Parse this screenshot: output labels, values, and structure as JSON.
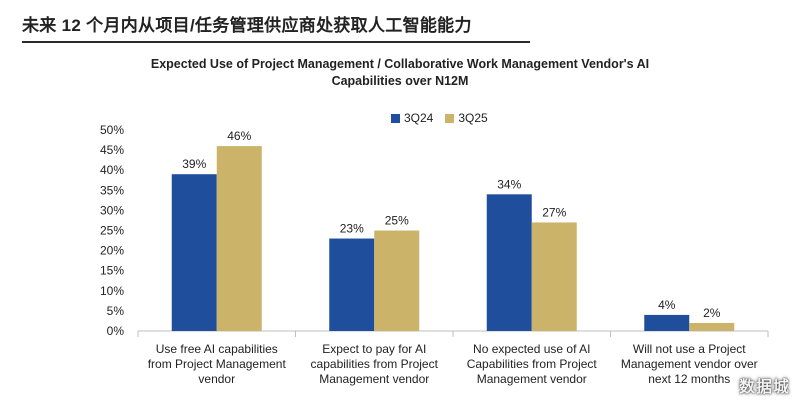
{
  "page_title": "未来 12 个月内从项目/任务管理供应商处获取人工智能能力",
  "chart_data": {
    "type": "bar",
    "title_line1": "Expected Use of Project Management / Collaborative Work Management Vendor's AI",
    "title_line2": "Capabilities over N12M",
    "categories": [
      [
        "Use free AI capabilities",
        "from Project Management",
        "vendor"
      ],
      [
        "Expect to pay for AI",
        "capabilities from Project",
        "Management vendor"
      ],
      [
        "No expected use of AI",
        "Capabilities from Project",
        "Management vendor"
      ],
      [
        "Will not use a Project",
        "Management vendor over",
        "next 12 months"
      ]
    ],
    "series": [
      {
        "name": "3Q24",
        "color": "#1f4e9c",
        "values": [
          39,
          23,
          34,
          4
        ],
        "labels": [
          "39%",
          "23%",
          "34%",
          "4%"
        ]
      },
      {
        "name": "3Q25",
        "color": "#cbb46a",
        "values": [
          46,
          25,
          27,
          2
        ],
        "labels": [
          "46%",
          "25%",
          "27%",
          "2%"
        ]
      }
    ],
    "ylim": [
      0,
      50
    ],
    "yticks": [
      "0%",
      "5%",
      "10%",
      "15%",
      "20%",
      "25%",
      "30%",
      "35%",
      "40%",
      "45%",
      "50%"
    ],
    "grid": false,
    "legend_position": "top-center"
  },
  "watermark": "数据城"
}
